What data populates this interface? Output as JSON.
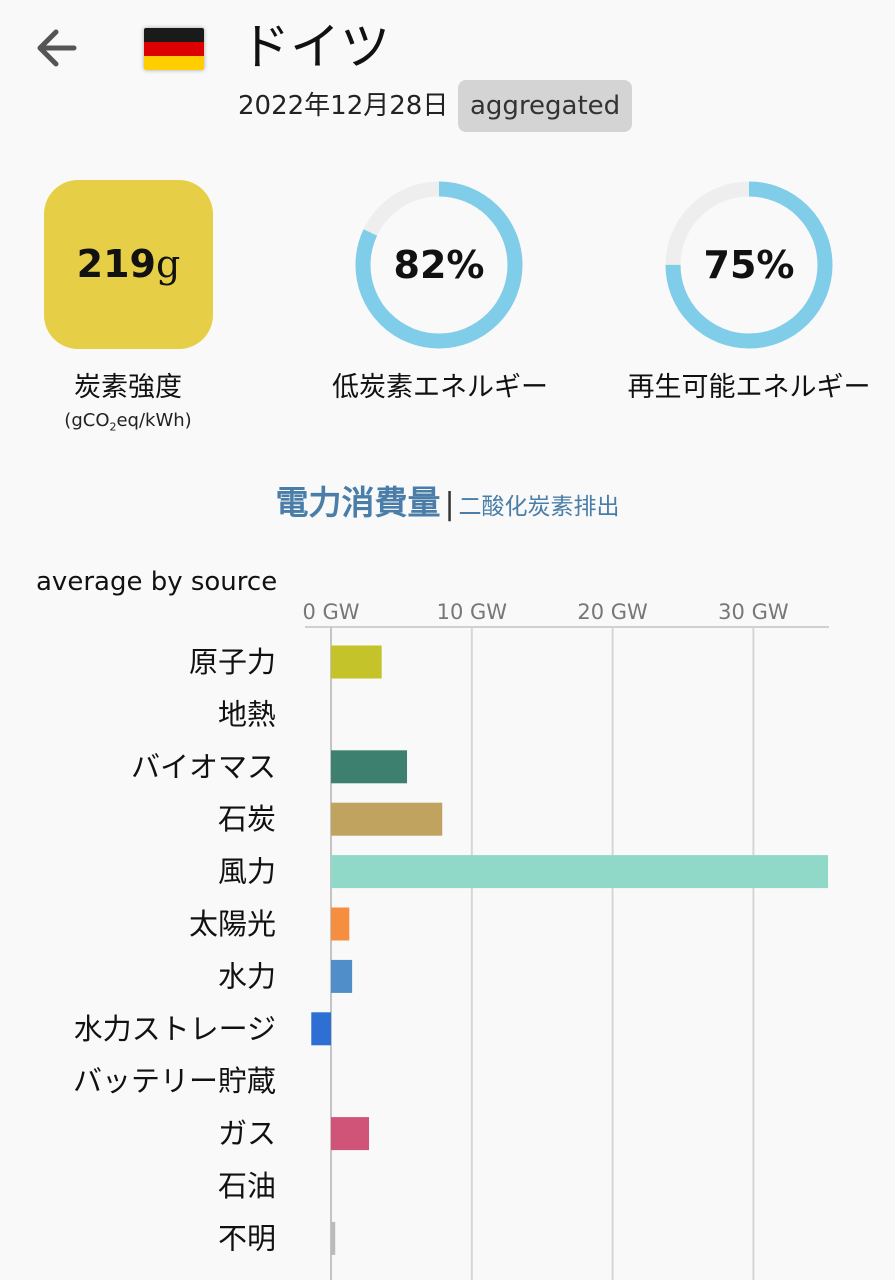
{
  "header": {
    "back_icon": "arrow-left-icon",
    "flag_icon": "germany-flag-icon",
    "country": "ドイツ",
    "date": "2022年12月28日",
    "badge": "aggregated"
  },
  "flag_colors": [
    "#1a1a1a",
    "#dd0000",
    "#ffce00"
  ],
  "carbon_intensity": {
    "value": "219",
    "unit": "g",
    "label": "炭素強度",
    "unit_prefix": "(gCO",
    "unit_sub": "2",
    "unit_suffix": "eq/kWh)",
    "color": "#e6cf47"
  },
  "low_carbon": {
    "percent": 82,
    "label_pct": "82%",
    "label": "低炭素エネルギー"
  },
  "renewable": {
    "percent": 75,
    "label_pct": "75%",
    "label": "再生可能エネルギー"
  },
  "donut_colors": {
    "fill": "#7fcde8",
    "track": "#eeeeee"
  },
  "toggle": {
    "active": "電力消費量",
    "separator": "|",
    "inactive": "二酸化炭素排出"
  },
  "chart_data": {
    "type": "bar",
    "orientation": "horizontal",
    "title": "average by source",
    "unit": "GW",
    "xlim": [
      -1.4,
      35.3
    ],
    "ticks": [
      0,
      10,
      20,
      30
    ],
    "tick_labels": [
      "0 GW",
      "10 GW",
      "20 GW",
      "30 GW"
    ],
    "categories": [
      "原子力",
      "地熱",
      "バイオマス",
      "石炭",
      "風力",
      "太陽光",
      "水力",
      "水力ストレージ",
      "バッテリー貯蔵",
      "ガス",
      "石油",
      "不明"
    ],
    "values": [
      3.6,
      0,
      5.4,
      7.9,
      35.3,
      1.3,
      1.5,
      -1.4,
      0,
      2.7,
      0,
      0.3
    ],
    "colors": [
      "#c4c42a",
      "#ffffff",
      "#3d8070",
      "#bfa35e",
      "#90d9c8",
      "#f58f3f",
      "#4f8ec8",
      "#2e6fd4",
      "#ffffff",
      "#cf5478",
      "#ffffff",
      "#bbbbbb"
    ]
  }
}
